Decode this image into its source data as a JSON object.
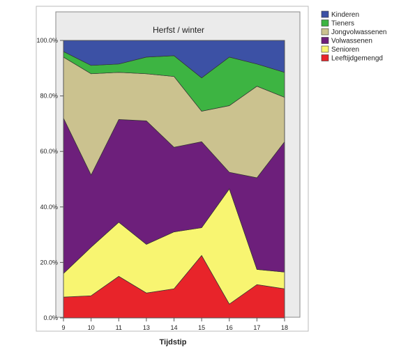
{
  "chart_data": {
    "type": "area",
    "stacked": true,
    "panel_title": "Herfst / winter",
    "xlabel": "Tijdstip",
    "ylabel": "",
    "x": [
      "9",
      "10",
      "11",
      "13",
      "14",
      "15",
      "16",
      "17",
      "18"
    ],
    "y_ticks": [
      "0.0%",
      "20.0%",
      "40.0%",
      "60.0%",
      "80.0%",
      "100.0%"
    ],
    "ylim": [
      0,
      100
    ],
    "legend_position": "top-right",
    "series": [
      {
        "name": "Leeftijdgemengd",
        "color": "#e8242a",
        "values": [
          7.5,
          8,
          15,
          9,
          10.5,
          22.5,
          5,
          12,
          10.5
        ]
      },
      {
        "name": "Senioren",
        "color": "#f8f571",
        "values": [
          8.5,
          17.5,
          19.5,
          17.5,
          20.5,
          10,
          41.5,
          5.5,
          6
        ]
      },
      {
        "name": "Volwassenen",
        "color": "#6d1f7b",
        "values": [
          56,
          26,
          37,
          44.5,
          30.5,
          31,
          6,
          33,
          47
        ]
      },
      {
        "name": "Jongvolwassenen",
        "color": "#cbc28f",
        "values": [
          22,
          36.5,
          17,
          17,
          25.5,
          11,
          24,
          33,
          16
        ]
      },
      {
        "name": "Tieners",
        "color": "#3db442",
        "values": [
          2,
          3,
          3,
          6,
          7.5,
          12,
          17.5,
          8,
          9
        ]
      },
      {
        "name": "Kinderen",
        "color": "#3c51a5",
        "values": [
          4,
          9,
          8.5,
          6,
          5.5,
          13.5,
          6,
          8.5,
          11.5
        ]
      }
    ],
    "legend_order": [
      "Kinderen",
      "Tieners",
      "Jongvolwassenen",
      "Volwassenen",
      "Senioren",
      "Leeftijdgemengd"
    ],
    "colors": {
      "panel_background": "#ebebeb",
      "plot_border": "#555555"
    }
  }
}
